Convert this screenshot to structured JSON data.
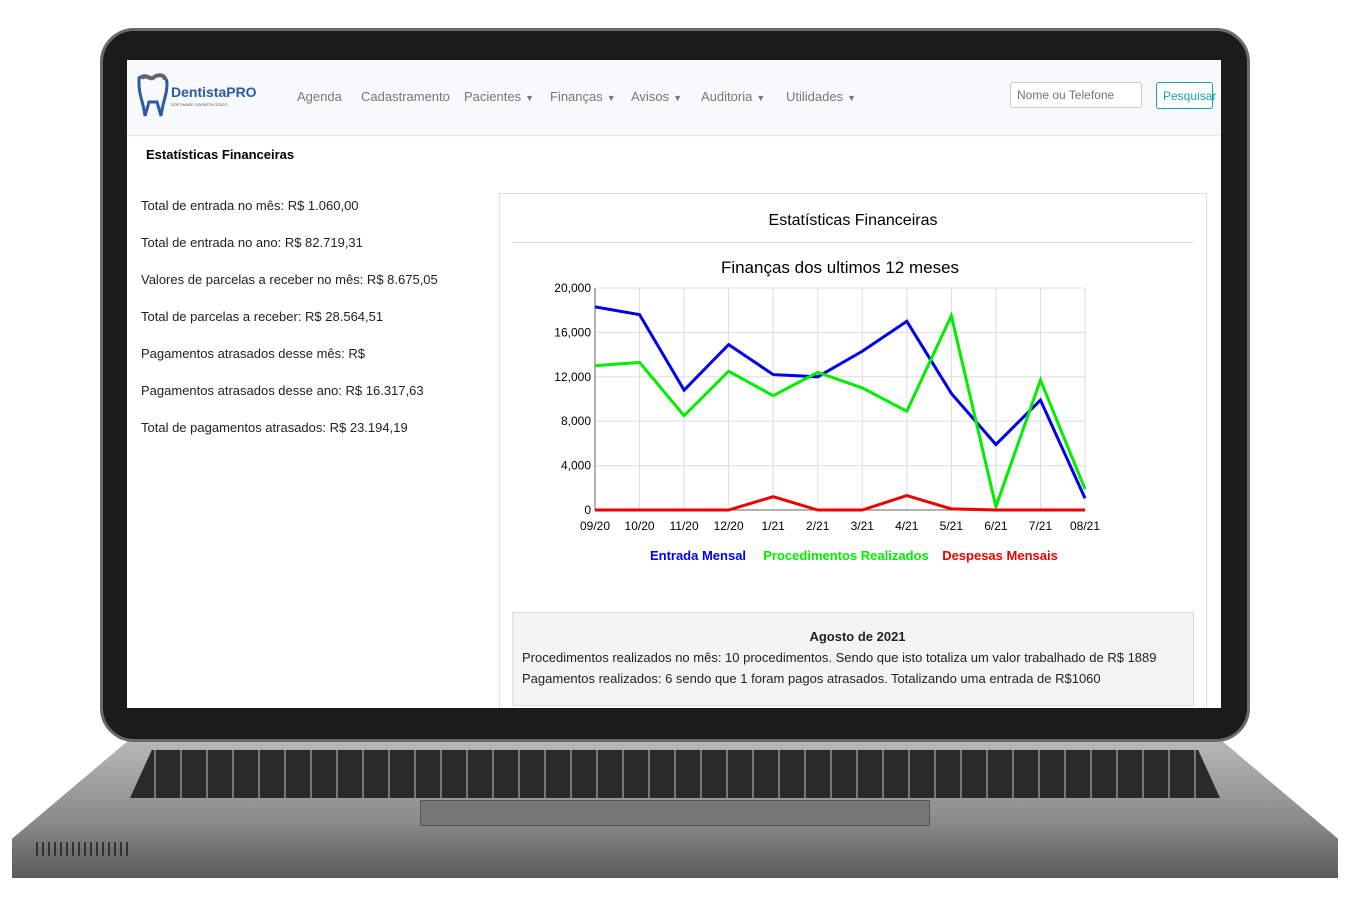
{
  "nav": {
    "brand": "DentistaPRO",
    "brand_sub": "SOFTWARE ODONTOLÓGICO",
    "items": [
      {
        "label": "Agenda",
        "dropdown": false
      },
      {
        "label": "Cadastramento",
        "dropdown": false
      },
      {
        "label": "Pacientes",
        "dropdown": true
      },
      {
        "label": "Finanças",
        "dropdown": true
      },
      {
        "label": "Avisos",
        "dropdown": true
      },
      {
        "label": "Auditoria",
        "dropdown": true
      },
      {
        "label": "Utilidades",
        "dropdown": true
      }
    ],
    "search_placeholder": "Nome ou Telefone",
    "search_button": "Pesquisar"
  },
  "page_title": "Estatísticas Financeiras",
  "stats": [
    "Total de entrada no mês: R$ 1.060,00",
    "Total de entrada no ano: R$ 82.719,31",
    "Valores de parcelas a receber no mês: R$ 8.675,05",
    "Total de parcelas a receber: R$ 28.564,51",
    "Pagamentos atrasados desse mês: R$",
    "Pagamentos atrasados desse ano: R$ 16.317,63",
    "Total de pagamentos atrasados: R$ 23.194,19"
  ],
  "card": {
    "title": "Estatísticas Financeiras",
    "summary": {
      "heading": "Agosto de 2021",
      "line1": "Procedimentos realizados no mês: 10 procedimentos. Sendo que isto totaliza um valor trabalhado de R$ 1889",
      "line2": "Pagamentos realizados: 6 sendo que 1 foram pagos atrasados. Totalizando uma entrada de R$1060"
    }
  },
  "chart_data": {
    "type": "line",
    "title": "Finanças dos ultimos 12 meses",
    "x": [
      "09/20",
      "10/20",
      "11/20",
      "12/20",
      "1/21",
      "2/21",
      "3/21",
      "4/21",
      "5/21",
      "6/21",
      "7/21",
      "08/21"
    ],
    "ylim": [
      0,
      20000
    ],
    "yticks": [
      "0",
      "4,000",
      "8,000",
      "12,000",
      "16,000",
      "20,000"
    ],
    "grid": true,
    "legend": "bottom",
    "series": [
      {
        "name": "Entrada Mensal",
        "color": "#0000ee",
        "values": [
          18300,
          17600,
          10800,
          14900,
          12200,
          12000,
          14300,
          17000,
          10500,
          5900,
          9900,
          1060
        ]
      },
      {
        "name": "Procedimentos Realizados",
        "color": "#00ee00",
        "values": [
          13000,
          13300,
          8500,
          12500,
          10300,
          12400,
          11000,
          8900,
          17500,
          300,
          11700,
          1889
        ]
      },
      {
        "name": "Despesas Mensais",
        "color": "#ee0000",
        "values": [
          0,
          0,
          0,
          0,
          1200,
          0,
          0,
          1300,
          100,
          0,
          0,
          0
        ]
      }
    ]
  }
}
